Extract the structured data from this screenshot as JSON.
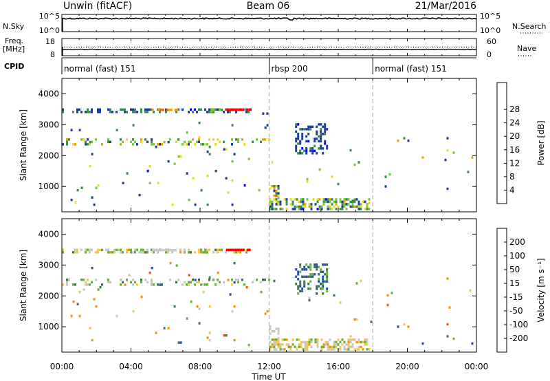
{
  "header": {
    "station": "Unwin (fitACF)",
    "beam": "Beam 06",
    "date": "21/Mar/2016"
  },
  "summary": {
    "nsky_label": "N.Sky",
    "nsky_ticks": [
      "10^5",
      "10^0"
    ],
    "nsearch_label": "N.Search",
    "nsearch_ticks": [
      "10^5",
      "10^0"
    ],
    "freq_label": [
      "Freq.",
      "[MHz]"
    ],
    "freq_ticks": [
      "18",
      "8"
    ],
    "nave_label": "Nave",
    "nave_ticks": [
      "60",
      "0"
    ],
    "cpid_label": "CPID",
    "cpid_segments": [
      {
        "name": "normal (fast) 151",
        "start_hour": 0,
        "end_hour": 12
      },
      {
        "name": "rbsp 200",
        "start_hour": 12,
        "end_hour": 18
      },
      {
        "name": "normal (fast) 151",
        "start_hour": 18,
        "end_hour": 24
      }
    ]
  },
  "colors": {
    "power_scale": [
      "#0000ff",
      "#1e3ca0",
      "#3c8c50",
      "#78c83c",
      "#e6dc28",
      "#f0a000",
      "#f06400",
      "#e61e00",
      "#ff0000"
    ],
    "velocity_scale": [
      "#1e28b4",
      "#2850a0",
      "#3c7850",
      "#64b43c",
      "#c8c8c8",
      "#f0c850",
      "#f09600",
      "#f05a00",
      "#ff0000"
    ],
    "gridline": "#b4b4b4"
  },
  "chart_data": [
    {
      "type": "heatmap",
      "title": "Power",
      "xlabel": "Time UT",
      "ylabel": "Slant Range [km]",
      "xlim_hours": [
        0,
        24
      ],
      "x_ticks": [
        "00:00",
        "04:00",
        "08:00",
        "12:00",
        "16:00",
        "20:00",
        "00:00"
      ],
      "ylim": [
        180,
        4500
      ],
      "y_ticks": [
        1000,
        2000,
        3000,
        4000
      ],
      "colorbar": {
        "label": "Power [dB]",
        "ticks": [
          4,
          8,
          12,
          16,
          20,
          24,
          28
        ],
        "range": [
          0,
          30
        ]
      },
      "echo_regions": [
        {
          "t0": 0.0,
          "t1": 11.0,
          "r0": 3370,
          "r1": 3530,
          "density": 0.45,
          "power": [
            3,
            10
          ]
        },
        {
          "t0": 5.2,
          "t1": 6.8,
          "r0": 3420,
          "r1": 3520,
          "density": 0.85,
          "power": [
            18,
            22
          ]
        },
        {
          "t0": 8.6,
          "t1": 9.3,
          "r0": 3360,
          "r1": 3520,
          "density": 0.65,
          "power": [
            9,
            14
          ]
        },
        {
          "t0": 9.5,
          "t1": 10.9,
          "r0": 3420,
          "r1": 3530,
          "density": 0.9,
          "power": [
            27,
            30
          ]
        },
        {
          "t0": 0.0,
          "t1": 12.0,
          "r0": 2320,
          "r1": 2560,
          "density": 0.22,
          "power": [
            4,
            18
          ]
        },
        {
          "t0": 11.6,
          "t1": 12.0,
          "r0": 3000,
          "r1": 3400,
          "density": 0.4,
          "power": [
            3,
            8
          ]
        },
        {
          "t0": 12.0,
          "t1": 12.6,
          "r0": 560,
          "r1": 1050,
          "density": 0.55,
          "power": [
            3,
            22
          ]
        },
        {
          "t0": 12.0,
          "t1": 17.9,
          "r0": 230,
          "r1": 620,
          "density": 0.55,
          "power": [
            3,
            18
          ]
        },
        {
          "t0": 13.5,
          "t1": 15.4,
          "r0": 2050,
          "r1": 3050,
          "density": 0.35,
          "power": [
            3,
            8
          ]
        },
        {
          "t0": 0.5,
          "t1": 12.0,
          "r0": 400,
          "r1": 3100,
          "density": 0.018,
          "power": [
            3,
            16
          ]
        },
        {
          "t0": 12.0,
          "t1": 24.0,
          "r0": 400,
          "r1": 2600,
          "density": 0.01,
          "power": [
            3,
            18
          ]
        }
      ]
    },
    {
      "type": "heatmap",
      "title": "Velocity",
      "xlabel": "Time UT",
      "ylabel": "Slant Range [km]",
      "xlim_hours": [
        0,
        24
      ],
      "x_ticks": [
        "00:00",
        "04:00",
        "08:00",
        "12:00",
        "16:00",
        "20:00",
        "00:00"
      ],
      "ylim": [
        180,
        4500
      ],
      "y_ticks": [
        1000,
        2000,
        3000,
        4000
      ],
      "colorbar": {
        "label": "Velocity [m s⁻¹]",
        "ticks": [
          "200",
          "100",
          "50",
          "15",
          "-15",
          "-50",
          "-100",
          "-200"
        ],
        "range": [
          -250,
          250
        ]
      },
      "echo_regions": [
        {
          "t0": 0.0,
          "t1": 11.0,
          "r0": 3370,
          "r1": 3530,
          "density": 0.5,
          "vel": [
            -60,
            60
          ]
        },
        {
          "t0": 5.2,
          "t1": 6.8,
          "r0": 3420,
          "r1": 3520,
          "density": 0.85,
          "vel": [
            -14,
            14
          ]
        },
        {
          "t0": 9.5,
          "t1": 10.9,
          "r0": 3420,
          "r1": 3530,
          "density": 0.9,
          "vel": [
            -240,
            -210
          ]
        },
        {
          "t0": 0.0,
          "t1": 12.0,
          "r0": 2320,
          "r1": 2560,
          "density": 0.22,
          "vel": [
            -30,
            60
          ]
        },
        {
          "t0": 12.0,
          "t1": 12.6,
          "r0": 560,
          "r1": 1050,
          "density": 0.55,
          "vel": [
            -14,
            14
          ]
        },
        {
          "t0": 12.0,
          "t1": 17.9,
          "r0": 230,
          "r1": 620,
          "density": 0.55,
          "vel": [
            -60,
            40
          ]
        },
        {
          "t0": 13.5,
          "t1": 15.4,
          "r0": 2050,
          "r1": 3050,
          "density": 0.35,
          "vel": [
            20,
            180
          ]
        },
        {
          "t0": 0.5,
          "t1": 12.0,
          "r0": 400,
          "r1": 3100,
          "density": 0.018,
          "vel": [
            -120,
            120
          ]
        },
        {
          "t0": 12.0,
          "t1": 24.0,
          "r0": 400,
          "r1": 2600,
          "density": 0.01,
          "vel": [
            -120,
            120
          ]
        }
      ]
    }
  ]
}
